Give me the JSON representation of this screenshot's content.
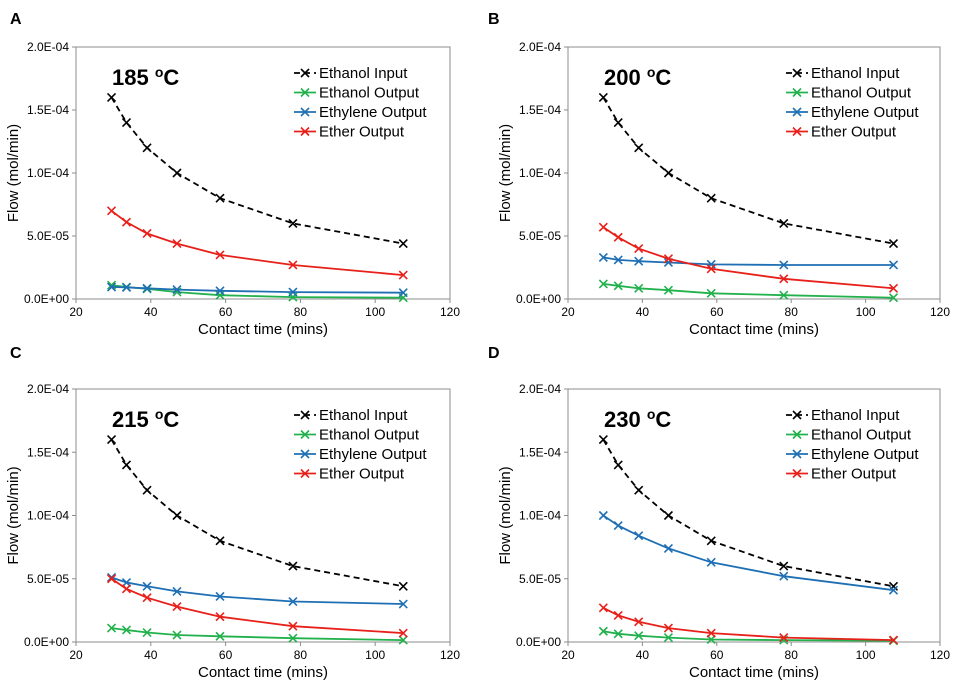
{
  "chart_data": [
    {
      "type": "line",
      "panel_label": "A",
      "title_temp": "185",
      "title_unit": "C",
      "title_sup": "o",
      "xlabel": "Contact time (mins)",
      "ylabel": "Flow (mol/min)",
      "xlim": [
        20,
        120
      ],
      "ylim": [
        0,
        0.0002
      ],
      "xticks": [
        "20",
        "40",
        "60",
        "80",
        "100",
        "120"
      ],
      "yticks": [
        "0.0E+00",
        "5.0E-05",
        "1.0E-04",
        "1.5E-04",
        "2.0E-04"
      ],
      "grid": false,
      "legend_position": "top-right",
      "x": [
        29.5,
        33.5,
        39,
        47,
        58.5,
        78,
        107.5
      ],
      "series": [
        {
          "name": "Ethanol Input",
          "color": "#000000",
          "dashed": true,
          "values": [
            0.00016,
            0.00014,
            0.00012,
            0.0001,
            8e-05,
            6e-05,
            4.4e-05
          ]
        },
        {
          "name": "Ethanol Output",
          "color": "#22b14c",
          "dashed": false,
          "values": [
            1.1e-05,
            9.5e-06,
            8e-06,
            5.5e-06,
            3e-06,
            1.5e-06,
            1e-06
          ]
        },
        {
          "name": "Ethylene Output",
          "color": "#1f6fb4",
          "dashed": false,
          "values": [
            9.5e-06,
            9.2e-06,
            8.5e-06,
            7.5e-06,
            6.5e-06,
            5.5e-06,
            5e-06
          ]
        },
        {
          "name": "Ether Output",
          "color": "#e8201a",
          "dashed": false,
          "values": [
            7e-05,
            6.1e-05,
            5.2e-05,
            4.4e-05,
            3.5e-05,
            2.7e-05,
            1.9e-05
          ]
        }
      ]
    },
    {
      "type": "line",
      "panel_label": "B",
      "title_temp": "200",
      "title_unit": "C",
      "title_sup": "o",
      "xlabel": "Contact time (mins)",
      "ylabel": "Flow (mol/min)",
      "xlim": [
        20,
        120
      ],
      "ylim": [
        0,
        0.0002
      ],
      "xticks": [
        "20",
        "40",
        "60",
        "80",
        "100",
        "120"
      ],
      "yticks": [
        "0.0E+00",
        "5.0E-05",
        "1.0E-04",
        "1.5E-04",
        "2.0E-04"
      ],
      "grid": false,
      "legend_position": "top-right",
      "x": [
        29.5,
        33.5,
        39,
        47,
        58.5,
        78,
        107.5
      ],
      "series": [
        {
          "name": "Ethanol Input",
          "color": "#000000",
          "dashed": true,
          "values": [
            0.00016,
            0.00014,
            0.00012,
            0.0001,
            8e-05,
            6e-05,
            4.4e-05
          ]
        },
        {
          "name": "Ethanol Output",
          "color": "#22b14c",
          "dashed": false,
          "values": [
            1.2e-05,
            1.05e-05,
            8.5e-06,
            7e-06,
            4.5e-06,
            3e-06,
            1e-06
          ]
        },
        {
          "name": "Ethylene Output",
          "color": "#1f6fb4",
          "dashed": false,
          "values": [
            3.3e-05,
            3.1e-05,
            3e-05,
            2.9e-05,
            2.75e-05,
            2.7e-05,
            2.7e-05
          ]
        },
        {
          "name": "Ether Output",
          "color": "#e8201a",
          "dashed": false,
          "values": [
            5.7e-05,
            4.9e-05,
            4e-05,
            3.2e-05,
            2.4e-05,
            1.6e-05,
            8.5e-06
          ]
        }
      ]
    },
    {
      "type": "line",
      "panel_label": "C",
      "title_temp": "215",
      "title_unit": "C",
      "title_sup": "o",
      "xlabel": "Contact time (mins)",
      "ylabel": "Flow (mol/min)",
      "xlim": [
        20,
        120
      ],
      "ylim": [
        0,
        0.0002
      ],
      "xticks": [
        "20",
        "40",
        "60",
        "80",
        "100",
        "120"
      ],
      "yticks": [
        "0.0E+00",
        "5.0E-05",
        "1.0E-04",
        "1.5E-04",
        "2.0E-04"
      ],
      "grid": false,
      "legend_position": "top-right",
      "x": [
        29.5,
        33.5,
        39,
        47,
        58.5,
        78,
        107.5
      ],
      "series": [
        {
          "name": "Ethanol Input",
          "color": "#000000",
          "dashed": true,
          "values": [
            0.00016,
            0.00014,
            0.00012,
            0.0001,
            8e-05,
            6e-05,
            4.4e-05
          ]
        },
        {
          "name": "Ethanol Output",
          "color": "#22b14c",
          "dashed": false,
          "values": [
            1.1e-05,
            9.5e-06,
            7.5e-06,
            5.5e-06,
            4.5e-06,
            3e-06,
            1.5e-06
          ]
        },
        {
          "name": "Ethylene Output",
          "color": "#1f6fb4",
          "dashed": false,
          "values": [
            5.1e-05,
            4.7e-05,
            4.4e-05,
            4e-05,
            3.6e-05,
            3.2e-05,
            3e-05
          ]
        },
        {
          "name": "Ether Output",
          "color": "#e8201a",
          "dashed": false,
          "values": [
            5e-05,
            4.2e-05,
            3.5e-05,
            2.8e-05,
            2e-05,
            1.25e-05,
            7e-06
          ]
        }
      ]
    },
    {
      "type": "line",
      "panel_label": "D",
      "title_temp": "230",
      "title_unit": "C",
      "title_sup": "o",
      "xlabel": "Contact time (mins)",
      "ylabel": "Flow (mol/min)",
      "xlim": [
        20,
        120
      ],
      "ylim": [
        0,
        0.0002
      ],
      "xticks": [
        "20",
        "40",
        "60",
        "80",
        "100",
        "120"
      ],
      "yticks": [
        "0.0E+00",
        "5.0E-05",
        "1.0E-04",
        "1.5E-04",
        "2.0E-04"
      ],
      "grid": false,
      "legend_position": "top-right",
      "x": [
        29.5,
        33.5,
        39,
        47,
        58.5,
        78,
        107.5
      ],
      "series": [
        {
          "name": "Ethanol Input",
          "color": "#000000",
          "dashed": true,
          "values": [
            0.00016,
            0.00014,
            0.00012,
            0.0001,
            8e-05,
            6e-05,
            4.4e-05
          ]
        },
        {
          "name": "Ethanol Output",
          "color": "#22b14c",
          "dashed": false,
          "values": [
            8.5e-06,
            6.5e-06,
            5e-06,
            3.5e-06,
            2e-06,
            1.5e-06,
            1e-06
          ]
        },
        {
          "name": "Ethylene Output",
          "color": "#1f6fb4",
          "dashed": false,
          "values": [
            0.0001,
            9.2e-05,
            8.4e-05,
            7.4e-05,
            6.3e-05,
            5.2e-05,
            4.1e-05
          ]
        },
        {
          "name": "Ether Output",
          "color": "#e8201a",
          "dashed": false,
          "values": [
            2.7e-05,
            2.1e-05,
            1.6e-05,
            1.1e-05,
            7e-06,
            3.5e-06,
            1.5e-06
          ]
        }
      ]
    }
  ]
}
